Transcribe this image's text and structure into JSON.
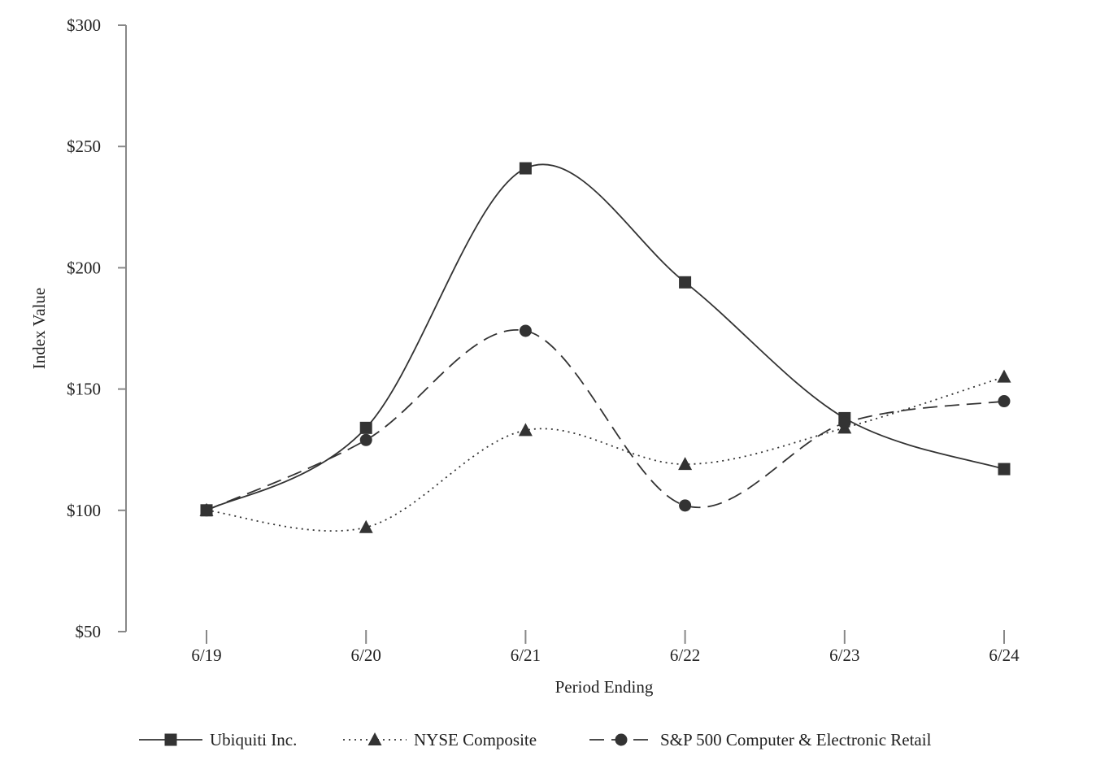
{
  "chart_data": {
    "type": "line",
    "title": "",
    "xlabel": "Period Ending",
    "ylabel": "Index Value",
    "categories": [
      "6/19",
      "6/20",
      "6/21",
      "6/22",
      "6/23",
      "6/24"
    ],
    "ylim": [
      50,
      300
    ],
    "yticks": [
      50,
      100,
      150,
      200,
      250,
      300
    ],
    "ytick_labels": [
      "$50",
      "$100",
      "$150",
      "$200",
      "$250",
      "$300"
    ],
    "grid": false,
    "legend_position": "bottom-center",
    "series": [
      {
        "name": "Ubiquiti Inc.",
        "marker": "square",
        "dash": "solid",
        "values": [
          100,
          134,
          241,
          194,
          138,
          117
        ]
      },
      {
        "name": "NYSE Composite",
        "marker": "triangle",
        "dash": "dotted",
        "values": [
          100,
          93,
          133,
          119,
          134,
          155
        ]
      },
      {
        "name": "S&P 500 Computer & Electronic Retail",
        "marker": "circle",
        "dash": "dashed",
        "values": [
          100,
          129,
          174,
          102,
          136,
          145
        ]
      }
    ],
    "colors": {
      "line": "#333333",
      "axis": "#888888"
    }
  }
}
